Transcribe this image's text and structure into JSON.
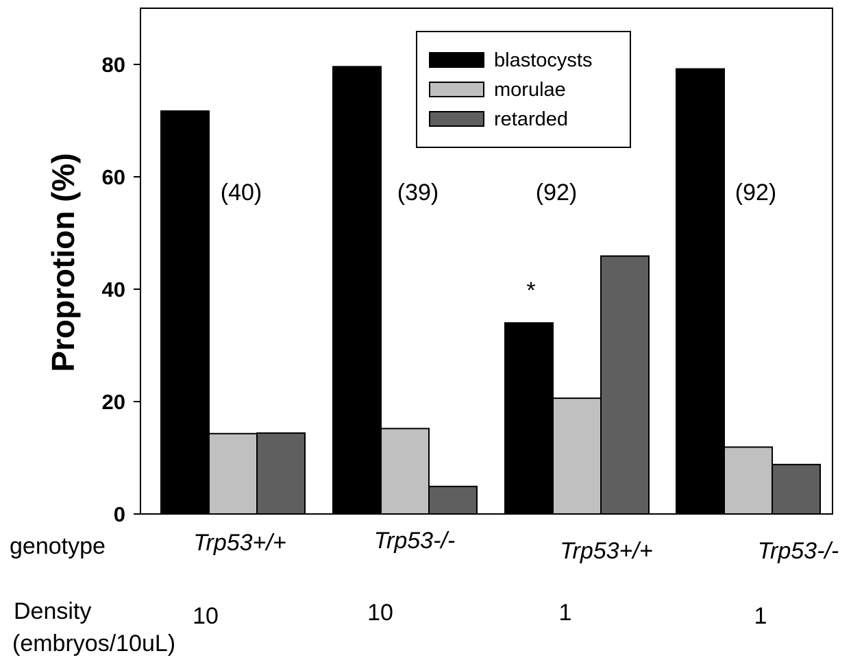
{
  "chart_data": {
    "type": "bar",
    "ylabel": "Proprotion (%)",
    "ylim": [
      0,
      90
    ],
    "yticks": [
      0,
      20,
      40,
      60,
      80
    ],
    "grid": false,
    "legend_position": "top-right",
    "groups": [
      {
        "genotype": "Trp53+/+",
        "density": "10",
        "count_label": "(40)",
        "annotation": ""
      },
      {
        "genotype": "Trp53-/-",
        "density": "10",
        "count_label": "(39)",
        "annotation": ""
      },
      {
        "genotype": "Trp53+/+",
        "density": "1",
        "count_label": "(92)",
        "annotation": "*"
      },
      {
        "genotype": "Trp53-/-",
        "density": "1",
        "count_label": "(92)",
        "annotation": ""
      }
    ],
    "series": [
      {
        "name": "blastocysts",
        "color": "#000000",
        "values": [
          71.7,
          79.6,
          34.0,
          79.2
        ]
      },
      {
        "name": "morulae",
        "color": "#c0c0c0",
        "values": [
          14.3,
          15.2,
          20.6,
          11.9
        ]
      },
      {
        "name": "retarded",
        "color": "#5f5f5f",
        "values": [
          14.4,
          4.9,
          45.9,
          8.8
        ]
      }
    ],
    "row_labels": {
      "genotype": "genotype",
      "density_line1": "Density",
      "density_line2": "(embryos/10uL)"
    }
  }
}
